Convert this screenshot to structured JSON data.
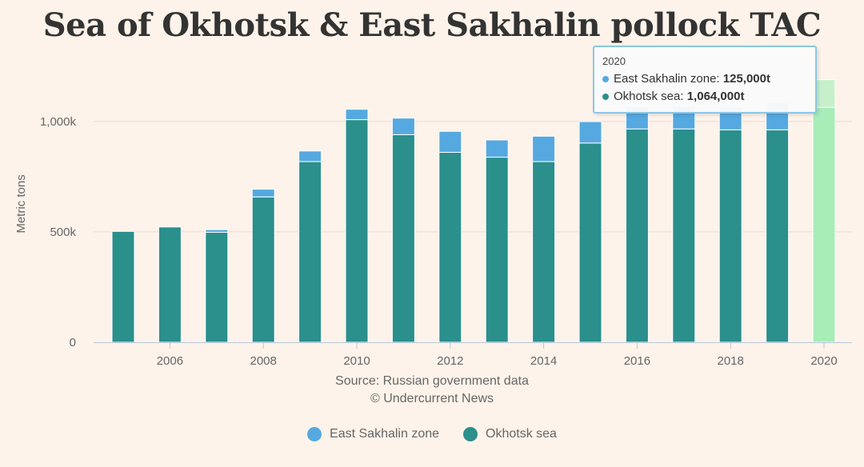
{
  "colors": {
    "east_sakhalin": "#56a9e0",
    "okhotsk": "#2b8f8c",
    "east_sakhalin_highlight": "#c6f0c9",
    "okhotsk_highlight": "#a8ecb8"
  },
  "chart_data": {
    "type": "bar",
    "stacked": true,
    "title": "Sea of Okhotsk & East Sakhalin pollock TAC",
    "xlabel": "",
    "ylabel": "Metric tons",
    "categories": [
      "2005",
      "2006",
      "2007",
      "2008",
      "2009",
      "2010",
      "2011",
      "2012",
      "2013",
      "2014",
      "2015",
      "2016",
      "2017",
      "2018",
      "2019",
      "2020"
    ],
    "x_tick_labels": [
      "2006",
      "2008",
      "2010",
      "2012",
      "2014",
      "2016",
      "2018",
      "2020"
    ],
    "y_tick_labels": [
      "0",
      "500k",
      "1,000k"
    ],
    "ylim": [
      0,
      1200000
    ],
    "grid": true,
    "legend_position": "bottom",
    "series": [
      {
        "name": "Okhotsk sea",
        "values": [
          502000,
          522000,
          498000,
          658000,
          818000,
          1008000,
          940000,
          860000,
          838000,
          818000,
          902000,
          966000,
          966000,
          962000,
          962000,
          1064000
        ]
      },
      {
        "name": "East Sakhalin zone",
        "values": [
          0,
          0,
          12000,
          35000,
          48000,
          47000,
          75000,
          95000,
          78000,
          115000,
          97000,
          103000,
          103000,
          103000,
          122000,
          125000
        ]
      }
    ],
    "highlighted_category": "2020"
  },
  "source": {
    "line1": "Source: Russian government data",
    "line2": "© Undercurrent News"
  },
  "legend": {
    "items": [
      "East Sakhalin zone",
      "Okhotsk sea"
    ]
  },
  "tooltip": {
    "year": "2020",
    "rows": [
      {
        "label": "East Sakhalin zone: ",
        "value": "125,000t"
      },
      {
        "label": "Okhotsk sea: ",
        "value": "1,064,000t"
      }
    ]
  }
}
